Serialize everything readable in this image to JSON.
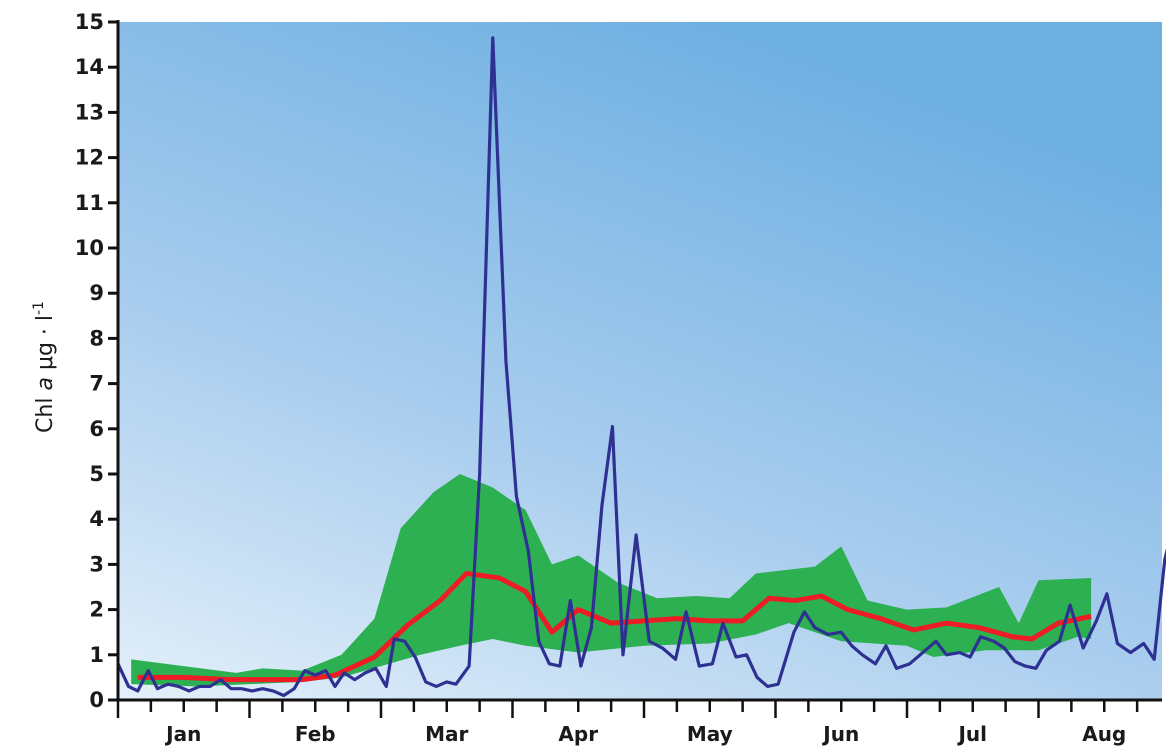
{
  "chart_data": {
    "type": "line",
    "title": "",
    "xlabel": "",
    "ylabel": "Chl a μg · l⁻¹",
    "ylabel_parts": {
      "pre": "Chl ",
      "ital": "a",
      "mid": " μg · l",
      "sup": "-1"
    },
    "ylim": [
      0,
      15
    ],
    "y_ticks": [
      "0",
      "1",
      "2",
      "3",
      "4",
      "5",
      "6",
      "7",
      "8",
      "9",
      "10",
      "11",
      "12",
      "13",
      "14",
      "15"
    ],
    "x_range_months": [
      0,
      7.9
    ],
    "month_labels": [
      "Jan",
      "Feb",
      "Mar",
      "Apr",
      "May",
      "Jun",
      "Jul",
      "Aug"
    ],
    "grid": false,
    "legend": "none",
    "colors": {
      "bg_top": "#6fb0e2",
      "bg_bottom": "#e4f0fa",
      "band": "#2db052",
      "mean": "#ee1c24",
      "observed": "#2e3192",
      "axis": "#111111"
    },
    "series": [
      {
        "kind": "band",
        "upper": [
          [
            0.1,
            0.9
          ],
          [
            0.5,
            0.75
          ],
          [
            0.9,
            0.6
          ],
          [
            1.1,
            0.7
          ],
          [
            1.4,
            0.65
          ],
          [
            1.7,
            1.0
          ],
          [
            1.95,
            1.8
          ],
          [
            2.15,
            3.8
          ],
          [
            2.4,
            4.6
          ],
          [
            2.6,
            5.0
          ],
          [
            2.85,
            4.7
          ],
          [
            3.1,
            4.2
          ],
          [
            3.3,
            3.0
          ],
          [
            3.5,
            3.2
          ],
          [
            3.8,
            2.6
          ],
          [
            4.1,
            2.25
          ],
          [
            4.4,
            2.3
          ],
          [
            4.65,
            2.25
          ],
          [
            4.85,
            2.8
          ],
          [
            5.3,
            2.95
          ],
          [
            5.5,
            3.4
          ],
          [
            5.7,
            2.2
          ],
          [
            6.0,
            2.0
          ],
          [
            6.3,
            2.05
          ],
          [
            6.7,
            2.5
          ],
          [
            6.85,
            1.7
          ],
          [
            7.0,
            2.65
          ],
          [
            7.4,
            2.7
          ]
        ],
        "lower": [
          [
            0.1,
            0.35
          ],
          [
            0.6,
            0.3
          ],
          [
            1.0,
            0.35
          ],
          [
            1.4,
            0.4
          ],
          [
            1.7,
            0.5
          ],
          [
            2.0,
            0.75
          ],
          [
            2.3,
            1.0
          ],
          [
            2.6,
            1.2
          ],
          [
            2.85,
            1.35
          ],
          [
            3.1,
            1.2
          ],
          [
            3.5,
            1.05
          ],
          [
            4.0,
            1.2
          ],
          [
            4.5,
            1.25
          ],
          [
            4.85,
            1.45
          ],
          [
            5.1,
            1.7
          ],
          [
            5.5,
            1.3
          ],
          [
            6.0,
            1.2
          ],
          [
            6.2,
            0.95
          ],
          [
            6.6,
            1.1
          ],
          [
            7.0,
            1.1
          ],
          [
            7.3,
            1.4
          ],
          [
            7.4,
            1.35
          ]
        ]
      },
      {
        "kind": "mean",
        "values": [
          [
            0.15,
            0.5
          ],
          [
            0.5,
            0.5
          ],
          [
            0.85,
            0.45
          ],
          [
            1.1,
            0.45
          ],
          [
            1.4,
            0.45
          ],
          [
            1.65,
            0.55
          ],
          [
            1.95,
            0.95
          ],
          [
            2.2,
            1.65
          ],
          [
            2.45,
            2.2
          ],
          [
            2.65,
            2.8
          ],
          [
            2.9,
            2.7
          ],
          [
            3.1,
            2.4
          ],
          [
            3.3,
            1.5
          ],
          [
            3.5,
            2.0
          ],
          [
            3.75,
            1.7
          ],
          [
            4.0,
            1.75
          ],
          [
            4.25,
            1.8
          ],
          [
            4.5,
            1.75
          ],
          [
            4.75,
            1.75
          ],
          [
            4.95,
            2.25
          ],
          [
            5.15,
            2.2
          ],
          [
            5.35,
            2.3
          ],
          [
            5.55,
            2.0
          ],
          [
            5.8,
            1.8
          ],
          [
            6.05,
            1.55
          ],
          [
            6.3,
            1.7
          ],
          [
            6.55,
            1.6
          ],
          [
            6.8,
            1.4
          ],
          [
            6.95,
            1.35
          ],
          [
            7.15,
            1.7
          ],
          [
            7.4,
            1.85
          ]
        ]
      },
      {
        "kind": "observed",
        "values": [
          [
            0.0,
            0.8
          ],
          [
            0.08,
            0.3
          ],
          [
            0.15,
            0.2
          ],
          [
            0.23,
            0.65
          ],
          [
            0.3,
            0.25
          ],
          [
            0.38,
            0.35
          ],
          [
            0.46,
            0.3
          ],
          [
            0.54,
            0.2
          ],
          [
            0.62,
            0.3
          ],
          [
            0.7,
            0.3
          ],
          [
            0.78,
            0.45
          ],
          [
            0.86,
            0.25
          ],
          [
            0.94,
            0.25
          ],
          [
            1.02,
            0.2
          ],
          [
            1.1,
            0.25
          ],
          [
            1.18,
            0.2
          ],
          [
            1.26,
            0.1
          ],
          [
            1.34,
            0.25
          ],
          [
            1.42,
            0.65
          ],
          [
            1.5,
            0.55
          ],
          [
            1.58,
            0.65
          ],
          [
            1.65,
            0.3
          ],
          [
            1.72,
            0.6
          ],
          [
            1.8,
            0.45
          ],
          [
            1.88,
            0.6
          ],
          [
            1.96,
            0.7
          ],
          [
            2.04,
            0.3
          ],
          [
            2.1,
            1.35
          ],
          [
            2.18,
            1.3
          ],
          [
            2.26,
            0.95
          ],
          [
            2.34,
            0.4
          ],
          [
            2.42,
            0.3
          ],
          [
            2.5,
            0.4
          ],
          [
            2.57,
            0.35
          ],
          [
            2.67,
            0.75
          ],
          [
            2.75,
            5.0
          ],
          [
            2.85,
            14.65
          ],
          [
            2.95,
            7.5
          ],
          [
            3.03,
            4.5
          ],
          [
            3.12,
            3.3
          ],
          [
            3.2,
            1.3
          ],
          [
            3.28,
            0.8
          ],
          [
            3.36,
            0.75
          ],
          [
            3.44,
            2.2
          ],
          [
            3.52,
            0.75
          ],
          [
            3.6,
            1.6
          ],
          [
            3.68,
            4.3
          ],
          [
            3.76,
            6.05
          ],
          [
            3.84,
            1.0
          ],
          [
            3.94,
            3.65
          ],
          [
            4.04,
            1.3
          ],
          [
            4.14,
            1.15
          ],
          [
            4.24,
            0.9
          ],
          [
            4.32,
            1.95
          ],
          [
            4.42,
            0.75
          ],
          [
            4.52,
            0.8
          ],
          [
            4.6,
            1.7
          ],
          [
            4.7,
            0.95
          ],
          [
            4.78,
            1.0
          ],
          [
            4.86,
            0.5
          ],
          [
            4.94,
            0.3
          ],
          [
            5.02,
            0.35
          ],
          [
            5.14,
            1.5
          ],
          [
            5.22,
            1.95
          ],
          [
            5.3,
            1.6
          ],
          [
            5.4,
            1.45
          ],
          [
            5.5,
            1.5
          ],
          [
            5.58,
            1.2
          ],
          [
            5.66,
            1.0
          ],
          [
            5.76,
            0.8
          ],
          [
            5.84,
            1.2
          ],
          [
            5.92,
            0.7
          ],
          [
            6.02,
            0.8
          ],
          [
            6.12,
            1.05
          ],
          [
            6.22,
            1.3
          ],
          [
            6.3,
            1.0
          ],
          [
            6.4,
            1.05
          ],
          [
            6.48,
            0.95
          ],
          [
            6.56,
            1.4
          ],
          [
            6.66,
            1.3
          ],
          [
            6.74,
            1.15
          ],
          [
            6.82,
            0.85
          ],
          [
            6.9,
            0.75
          ],
          [
            6.98,
            0.7
          ],
          [
            7.06,
            1.1
          ],
          [
            7.16,
            1.3
          ],
          [
            7.24,
            2.1
          ],
          [
            7.34,
            1.15
          ],
          [
            7.44,
            1.75
          ],
          [
            7.52,
            2.35
          ],
          [
            7.6,
            1.25
          ],
          [
            7.7,
            1.05
          ],
          [
            7.8,
            1.25
          ],
          [
            7.88,
            0.9
          ],
          [
            7.96,
            3.1
          ],
          [
            8.04,
            4.05
          ]
        ]
      }
    ]
  }
}
